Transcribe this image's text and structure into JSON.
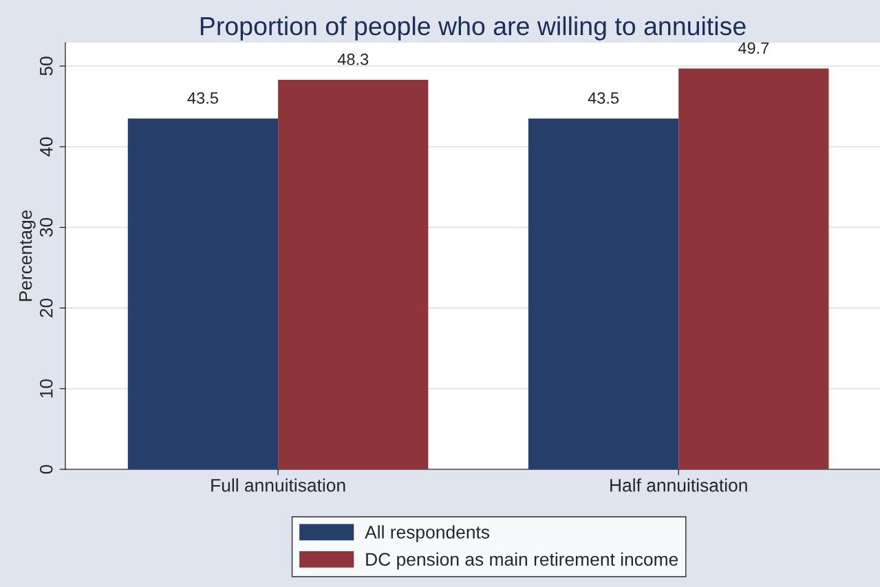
{
  "chart_data": {
    "type": "bar",
    "title": "Proportion of people who are willing to annuitise",
    "ylabel": "Percentage",
    "categories": [
      "Full annuitisation",
      "Half annuitisation"
    ],
    "series": [
      {
        "name": "All respondents",
        "color": "#263f6a",
        "values": [
          43.5,
          43.5
        ]
      },
      {
        "name": "DC pension as main retirement income",
        "color": "#8e353c",
        "values": [
          48.3,
          49.7
        ]
      }
    ],
    "ylim": [
      0,
      52.9
    ],
    "yticks": [
      0,
      10,
      20,
      30,
      40,
      50
    ],
    "grid": "y",
    "legend": "bottom",
    "data_labels": true
  }
}
